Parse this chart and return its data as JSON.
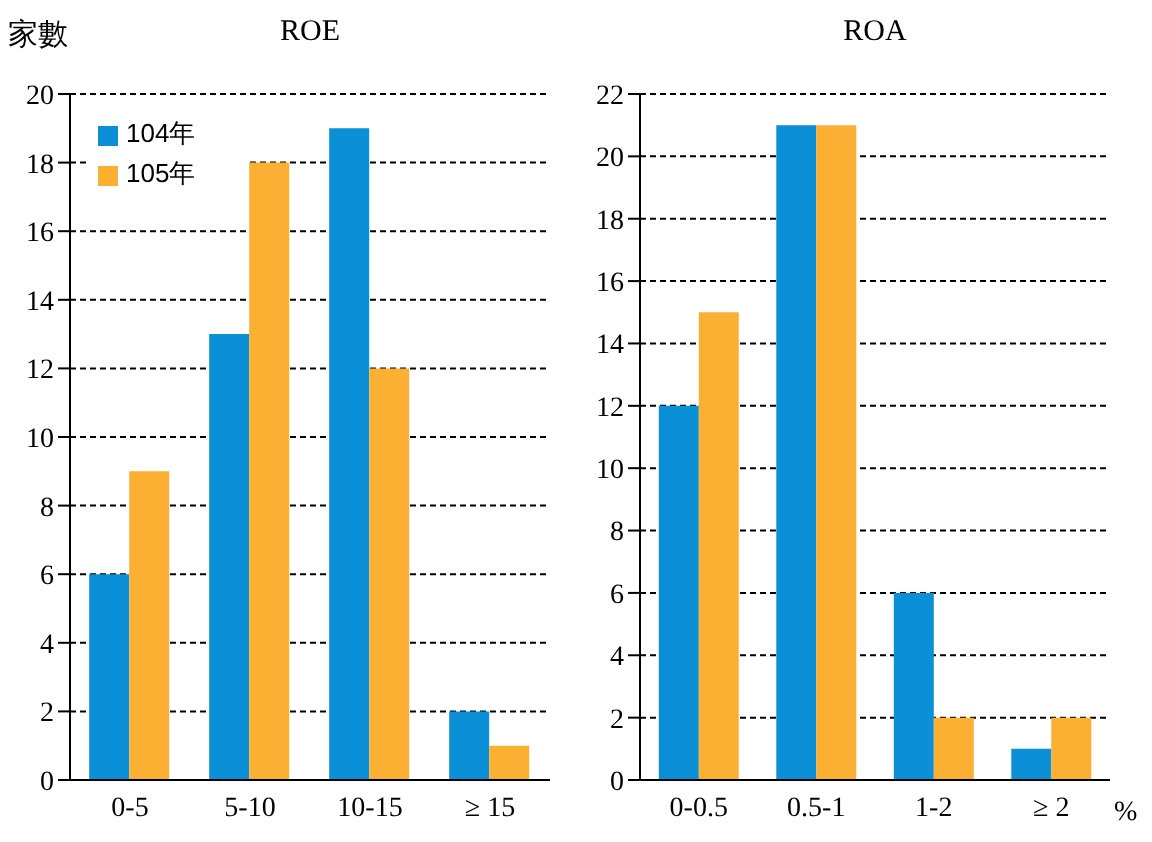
{
  "chart_data": [
    {
      "type": "bar",
      "title": "ROE",
      "ylabel": "家數",
      "categories": [
        "0-5",
        "5-10",
        "10-15",
        "≥ 15"
      ],
      "series": [
        {
          "name": "104年",
          "color": "#0b8fd6",
          "values": [
            6,
            13,
            19,
            2
          ]
        },
        {
          "name": "105年",
          "color": "#fbb034",
          "values": [
            9,
            18,
            12,
            1
          ]
        }
      ],
      "ylim": [
        0,
        20
      ],
      "yticks": [
        0,
        2,
        4,
        6,
        8,
        10,
        12,
        14,
        16,
        18,
        20
      ],
      "grid": "y",
      "legend": "top left"
    },
    {
      "type": "bar",
      "title": "ROA",
      "xlabel": "%",
      "categories": [
        "0-0.5",
        "0.5-1",
        "1-2",
        "≥ 2"
      ],
      "series": [
        {
          "color": "#0b8fd6",
          "values": [
            12,
            21,
            6,
            1
          ]
        },
        {
          "color": "#fbb034",
          "values": [
            15,
            21,
            2,
            2
          ]
        }
      ],
      "ylim": [
        0,
        22
      ],
      "yticks": [
        0,
        2,
        4,
        6,
        8,
        10,
        12,
        14,
        16,
        18,
        20,
        22
      ],
      "grid": "y"
    }
  ]
}
